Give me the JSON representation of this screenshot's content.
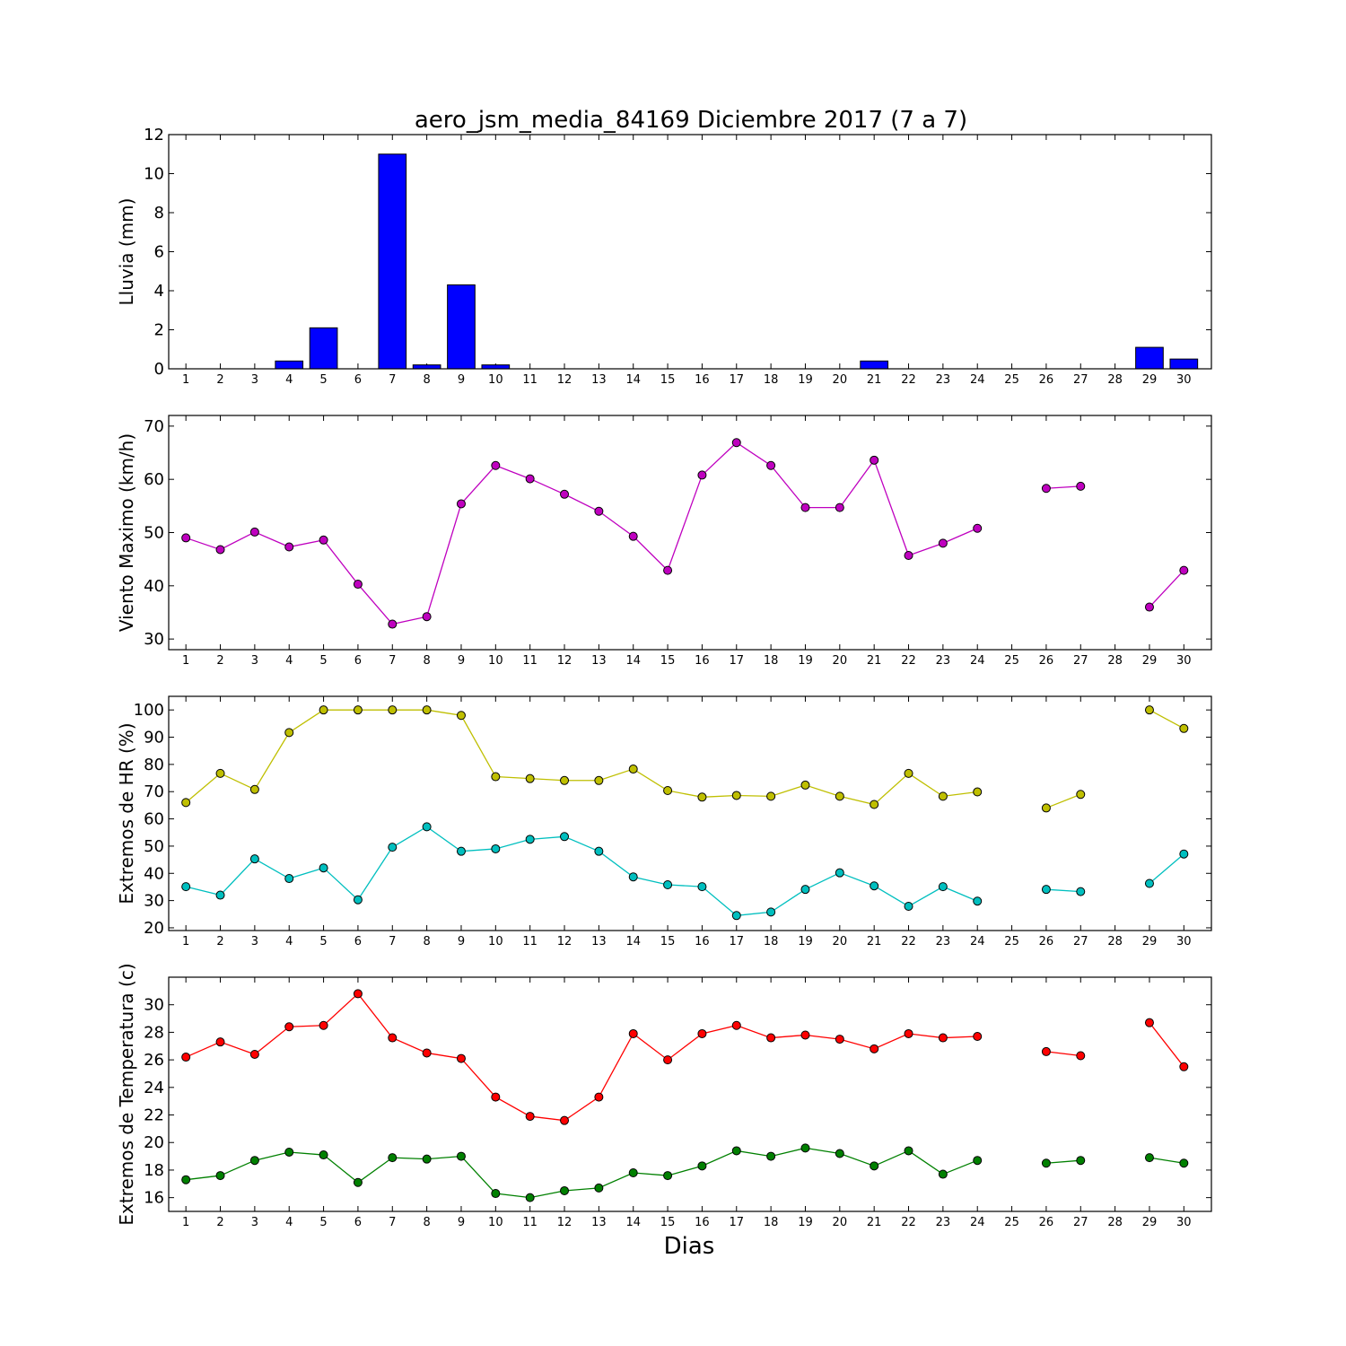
{
  "figure": {
    "title": "aero_jsm_media_84169 Diciembre 2017  (7 a 7)",
    "xlabel": "Dias"
  },
  "chart_data": [
    {
      "type": "bar",
      "ylabel": "Lluvia (mm)",
      "ylim": [
        0,
        12
      ],
      "yticks": [
        0,
        2,
        4,
        6,
        8,
        10,
        12
      ],
      "x": [
        1,
        2,
        3,
        4,
        5,
        6,
        7,
        8,
        9,
        10,
        11,
        12,
        13,
        14,
        15,
        16,
        17,
        18,
        19,
        20,
        21,
        22,
        23,
        24,
        25,
        26,
        27,
        28,
        29,
        30
      ],
      "xticks": [
        1,
        2,
        3,
        4,
        5,
        6,
        7,
        8,
        9,
        10,
        11,
        12,
        13,
        14,
        15,
        16,
        17,
        18,
        19,
        20,
        21,
        22,
        23,
        24,
        25,
        26,
        27,
        28,
        29,
        30
      ],
      "values": [
        0,
        0,
        0,
        0.4,
        2.1,
        0,
        11,
        0.2,
        4.3,
        0.2,
        0,
        0,
        0,
        0,
        0,
        0,
        0,
        0,
        0,
        0,
        0.4,
        0,
        0,
        0,
        0,
        0,
        0,
        0,
        1.1,
        0.5
      ],
      "color": "#0000ff"
    },
    {
      "type": "line",
      "ylabel": "Viento Maximo (km/h)",
      "ylim": [
        28,
        72
      ],
      "yticks": [
        30,
        40,
        50,
        60,
        70
      ],
      "x": [
        1,
        2,
        3,
        4,
        5,
        6,
        7,
        8,
        9,
        10,
        11,
        12,
        13,
        14,
        15,
        16,
        17,
        18,
        19,
        20,
        21,
        22,
        23,
        24,
        25,
        26,
        27,
        28,
        29,
        30
      ],
      "xticks": [
        1,
        2,
        3,
        4,
        5,
        6,
        7,
        8,
        9,
        10,
        11,
        12,
        13,
        14,
        15,
        16,
        17,
        18,
        19,
        20,
        21,
        22,
        23,
        24,
        25,
        26,
        27,
        28,
        29,
        30
      ],
      "series": [
        {
          "color": "#bf00bf",
          "values": [
            49,
            46.8,
            50.1,
            47.3,
            48.6,
            40.3,
            32.8,
            34.2,
            55.4,
            62.6,
            60.1,
            57.2,
            54,
            49.3,
            42.9,
            60.8,
            66.9,
            62.6,
            54.7,
            54.7,
            63.6,
            45.7,
            48,
            50.8,
            null,
            58.3,
            58.7,
            null,
            36,
            42.9
          ]
        }
      ]
    },
    {
      "type": "line",
      "ylabel": "Extremos de HR (%)",
      "ylim": [
        19,
        105
      ],
      "yticks": [
        20,
        30,
        40,
        50,
        60,
        70,
        80,
        90,
        100
      ],
      "x": [
        1,
        2,
        3,
        4,
        5,
        6,
        7,
        8,
        9,
        10,
        11,
        12,
        13,
        14,
        15,
        16,
        17,
        18,
        19,
        20,
        21,
        22,
        23,
        24,
        25,
        26,
        27,
        28,
        29,
        30
      ],
      "xticks": [
        1,
        2,
        3,
        4,
        5,
        6,
        7,
        8,
        9,
        10,
        11,
        12,
        13,
        14,
        15,
        16,
        17,
        18,
        19,
        20,
        21,
        22,
        23,
        24,
        25,
        26,
        27,
        28,
        29,
        30
      ],
      "series": [
        {
          "color": "#bfbf00",
          "values": [
            66,
            76.7,
            70.8,
            91.7,
            100,
            100,
            100,
            100,
            98,
            75.5,
            74.8,
            74.1,
            74.1,
            78.3,
            70.4,
            68,
            68.6,
            68.3,
            72.4,
            68.3,
            65.3,
            76.7,
            68.3,
            69.9,
            null,
            64,
            69,
            null,
            100,
            93.2
          ]
        },
        {
          "color": "#00bfbf",
          "values": [
            35.1,
            32,
            45.3,
            38.1,
            42,
            30.3,
            49.6,
            57.1,
            48.1,
            49,
            52.5,
            53.5,
            48.1,
            38.7,
            35.8,
            35.1,
            24.5,
            25.8,
            34.1,
            40.2,
            35.4,
            27.9,
            35.1,
            29.8,
            null,
            34.1,
            33.3,
            null,
            36.3,
            47.1
          ]
        }
      ]
    },
    {
      "type": "line",
      "ylabel": "Extremos de Temperatura (c)",
      "ylim": [
        15,
        32
      ],
      "yticks": [
        16,
        18,
        20,
        22,
        24,
        26,
        28,
        30
      ],
      "x": [
        1,
        2,
        3,
        4,
        5,
        6,
        7,
        8,
        9,
        10,
        11,
        12,
        13,
        14,
        15,
        16,
        17,
        18,
        19,
        20,
        21,
        22,
        23,
        24,
        25,
        26,
        27,
        28,
        29,
        30
      ],
      "xticks": [
        1,
        2,
        3,
        4,
        5,
        6,
        7,
        8,
        9,
        10,
        11,
        12,
        13,
        14,
        15,
        16,
        17,
        18,
        19,
        20,
        21,
        22,
        23,
        24,
        25,
        26,
        27,
        28,
        29,
        30
      ],
      "series": [
        {
          "color": "#ff0000",
          "values": [
            26.2,
            27.3,
            26.4,
            28.4,
            28.5,
            30.8,
            27.6,
            26.5,
            26.1,
            23.3,
            21.9,
            21.6,
            23.3,
            27.9,
            26,
            27.9,
            28.5,
            27.6,
            27.8,
            27.5,
            26.8,
            27.9,
            27.6,
            27.7,
            null,
            26.6,
            26.3,
            null,
            28.7,
            25.5
          ]
        },
        {
          "color": "#008000",
          "values": [
            17.3,
            17.6,
            18.7,
            19.3,
            19.1,
            17.1,
            18.9,
            18.8,
            19,
            16.3,
            16,
            16.5,
            16.7,
            17.8,
            17.6,
            18.3,
            19.4,
            19,
            19.6,
            19.2,
            18.3,
            19.4,
            17.7,
            18.7,
            null,
            18.5,
            18.7,
            null,
            18.9,
            18.5
          ]
        }
      ]
    }
  ]
}
